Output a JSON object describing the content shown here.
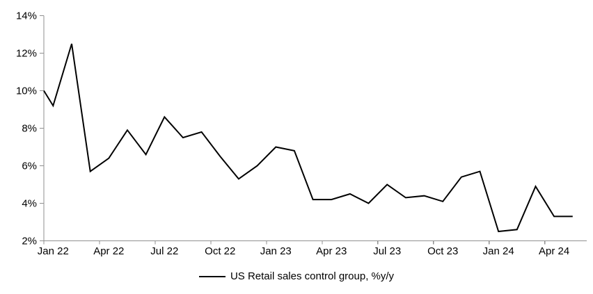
{
  "chart_data": {
    "type": "line",
    "title": "",
    "xlabel": "",
    "ylabel": "",
    "categories": [
      "Jan 22",
      "Feb 22",
      "Mar 22",
      "Apr 22",
      "May 22",
      "Jun 22",
      "Jul 22",
      "Aug 22",
      "Sep 22",
      "Oct 22",
      "Nov 22",
      "Dec 22",
      "Jan 23",
      "Feb 23",
      "Mar 23",
      "Apr 23",
      "May 23",
      "Jun 23",
      "Jul 23",
      "Aug 23",
      "Sep 23",
      "Oct 23",
      "Nov 23",
      "Dec 23",
      "Jan 24",
      "Feb 24",
      "Mar 24",
      "Apr 24",
      "May 24"
    ],
    "series": [
      {
        "name": "US Retail sales control group, %y/y",
        "color": "#000000",
        "values": [
          9.2,
          12.5,
          5.7,
          6.4,
          7.9,
          6.6,
          8.6,
          7.5,
          7.8,
          6.5,
          5.3,
          6.0,
          7.0,
          6.8,
          4.2,
          4.2,
          4.5,
          4.0,
          5.0,
          4.3,
          4.4,
          4.1,
          5.4,
          5.7,
          2.5,
          2.6,
          4.9,
          3.3,
          3.3
        ]
      }
    ],
    "edge_entry_value": 10.0,
    "ylim": [
      2,
      14
    ],
    "y_tick_step": 2,
    "y_tick_labels": [
      "2%",
      "4%",
      "6%",
      "8%",
      "10%",
      "12%",
      "14%"
    ],
    "x_tick_labels": [
      "Jan 22",
      "Apr 22",
      "Jul 22",
      "Oct 22",
      "Jan 23",
      "Apr 23",
      "Jul 23",
      "Oct 23",
      "Jan 24",
      "Apr 24"
    ],
    "x_label_every_n_months": 3,
    "grid": false,
    "legend_position": "bottom",
    "colors": {
      "axis": "#8f8f8f",
      "text": "#000000",
      "background": "#ffffff",
      "line": "#000000"
    }
  },
  "legend": {
    "label": "US Retail sales control group, %y/y"
  }
}
